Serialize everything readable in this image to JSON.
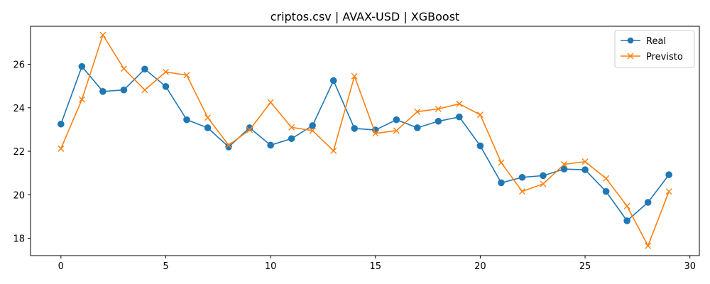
{
  "chart_data": {
    "type": "line",
    "title": "criptos.csv | AVAX-USD | XGBoost",
    "xlabel": "",
    "ylabel": "",
    "x": [
      0,
      1,
      2,
      3,
      4,
      5,
      6,
      7,
      8,
      9,
      10,
      11,
      12,
      13,
      14,
      15,
      16,
      17,
      18,
      19,
      20,
      21,
      22,
      23,
      24,
      25,
      26,
      27,
      28,
      29
    ],
    "xlim": [
      -1.45,
      30.45
    ],
    "ylim": [
      17.2,
      27.75
    ],
    "xticks": [
      0,
      5,
      10,
      15,
      20,
      25,
      30
    ],
    "yticks": [
      18,
      20,
      22,
      24,
      26
    ],
    "grid": false,
    "legend_position": "top-right",
    "series": [
      {
        "name": "Real",
        "color": "#1f77b4",
        "marker": "circle",
        "values": [
          23.25,
          25.9,
          24.75,
          24.82,
          25.78,
          24.98,
          23.45,
          23.08,
          22.2,
          23.08,
          22.28,
          22.58,
          23.18,
          25.25,
          23.05,
          22.98,
          23.45,
          23.08,
          23.38,
          23.58,
          22.25,
          20.55,
          20.8,
          20.88,
          21.18,
          21.15,
          20.15,
          18.8,
          19.65,
          20.92
        ]
      },
      {
        "name": "Previsto",
        "color": "#ff7f0e",
        "marker": "x",
        "values": [
          22.12,
          24.38,
          27.35,
          25.8,
          24.82,
          25.65,
          25.5,
          23.55,
          22.28,
          22.98,
          24.25,
          23.1,
          22.95,
          22.02,
          25.45,
          22.82,
          22.95,
          23.82,
          23.95,
          24.18,
          23.68,
          21.48,
          20.15,
          20.5,
          21.4,
          21.52,
          20.75,
          19.48,
          17.65,
          20.15
        ]
      }
    ]
  }
}
